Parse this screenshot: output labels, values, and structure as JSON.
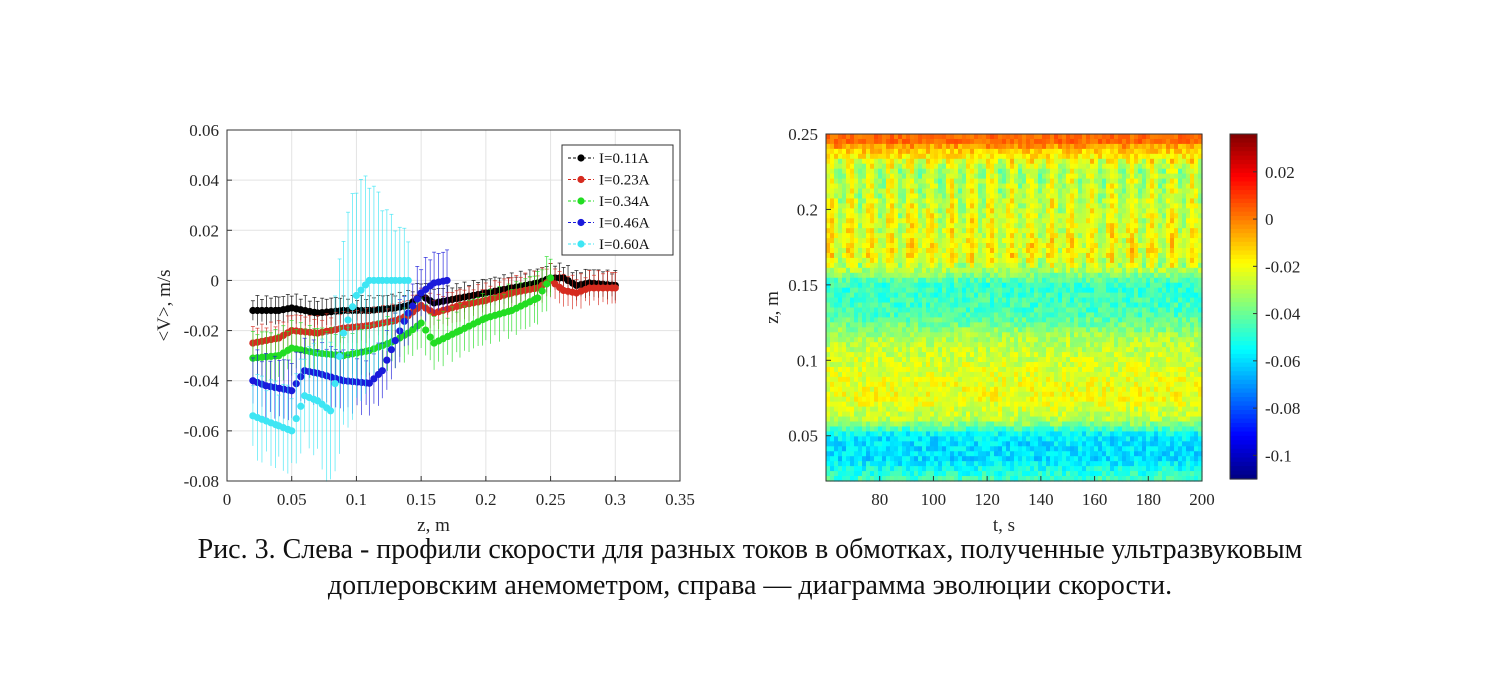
{
  "chart_data": [
    {
      "type": "scatter",
      "xlabel": "z, m",
      "ylabel": "<V>, m/s",
      "xlim": [
        0,
        0.35
      ],
      "ylim": [
        -0.08,
        0.06
      ],
      "xticks": [
        "0",
        "0.05",
        "0.1",
        "0.15",
        "0.2",
        "0.25",
        "0.3",
        "0.35"
      ],
      "yticks": [
        "0.06",
        "0.04",
        "0.02",
        "0",
        "-0.02",
        "-0.04",
        "-0.06",
        "-0.08"
      ],
      "grid": true,
      "legend_position": "top-right",
      "series": [
        {
          "name": "I=0.11A",
          "color": "#000000",
          "x": [
            0.02,
            0.04,
            0.05,
            0.07,
            0.09,
            0.11,
            0.13,
            0.14,
            0.15,
            0.16,
            0.18,
            0.2,
            0.22,
            0.24,
            0.25,
            0.26,
            0.27,
            0.28,
            0.3
          ],
          "y": [
            -0.012,
            -0.012,
            -0.011,
            -0.013,
            -0.012,
            -0.012,
            -0.011,
            -0.01,
            -0.006,
            -0.009,
            -0.007,
            -0.005,
            -0.003,
            -0.001,
            0.001,
            0.001,
            -0.002,
            -0.001,
            -0.002
          ],
          "err": 0.006
        },
        {
          "name": "I=0.23A",
          "color": "#d62b1f",
          "x": [
            0.02,
            0.04,
            0.05,
            0.07,
            0.09,
            0.11,
            0.13,
            0.14,
            0.15,
            0.16,
            0.18,
            0.2,
            0.22,
            0.24,
            0.25,
            0.26,
            0.27,
            0.28,
            0.3
          ],
          "y": [
            -0.025,
            -0.023,
            -0.02,
            -0.021,
            -0.019,
            -0.018,
            -0.016,
            -0.014,
            -0.01,
            -0.013,
            -0.01,
            -0.008,
            -0.005,
            -0.003,
            0.0,
            -0.004,
            -0.005,
            -0.003,
            -0.003
          ],
          "err": 0.007
        },
        {
          "name": "I=0.34A",
          "color": "#22dd22",
          "x": [
            0.02,
            0.04,
            0.05,
            0.07,
            0.09,
            0.11,
            0.13,
            0.14,
            0.15,
            0.16,
            0.18,
            0.2,
            0.22,
            0.24,
            0.25
          ],
          "y": [
            -0.031,
            -0.03,
            -0.027,
            -0.029,
            -0.03,
            -0.028,
            -0.024,
            -0.021,
            -0.017,
            -0.025,
            -0.02,
            -0.015,
            -0.012,
            -0.007,
            0.001
          ],
          "err": 0.011
        },
        {
          "name": "I=0.46A",
          "color": "#1a1adb",
          "x": [
            0.02,
            0.03,
            0.05,
            0.06,
            0.07,
            0.09,
            0.11,
            0.12,
            0.13,
            0.14,
            0.15,
            0.16,
            0.17
          ],
          "y": [
            -0.04,
            -0.042,
            -0.044,
            -0.036,
            -0.037,
            -0.04,
            -0.041,
            -0.036,
            -0.024,
            -0.013,
            -0.005,
            -0.001,
            0.0
          ],
          "err": 0.013
        },
        {
          "name": "I=0.60A",
          "color": "#3ee6f4",
          "x": [
            0.02,
            0.04,
            0.05,
            0.06,
            0.07,
            0.08,
            0.09,
            0.1,
            0.11,
            0.12,
            0.13,
            0.14
          ],
          "y": [
            -0.054,
            -0.058,
            -0.06,
            -0.046,
            -0.048,
            -0.052,
            -0.021,
            -0.006,
            0.0,
            0.0,
            0.0,
            0.0
          ],
          "err": 0.03
        }
      ]
    },
    {
      "type": "heatmap",
      "xlabel": "t, s",
      "ylabel": "z, m",
      "xlim": [
        60,
        200
      ],
      "ylim": [
        0.02,
        0.25
      ],
      "xticks": [
        "80",
        "100",
        "120",
        "140",
        "160",
        "180",
        "200"
      ],
      "yticks": [
        "0.25",
        "0.2",
        "0.15",
        "0.1",
        "0.05"
      ],
      "colorbar_range": [
        -0.11,
        0.036
      ],
      "colorbar_ticks": [
        "0.02",
        "0",
        "-0.02",
        "-0.04",
        "-0.06",
        "-0.08",
        "-0.1"
      ],
      "colormap": "jet",
      "z_profile": [
        {
          "z": 0.02,
          "v": -0.045
        },
        {
          "z": 0.035,
          "v": -0.06
        },
        {
          "z": 0.05,
          "v": -0.058
        },
        {
          "z": 0.06,
          "v": -0.03
        },
        {
          "z": 0.075,
          "v": -0.02
        },
        {
          "z": 0.1,
          "v": -0.025
        },
        {
          "z": 0.115,
          "v": -0.03
        },
        {
          "z": 0.13,
          "v": -0.045
        },
        {
          "z": 0.15,
          "v": -0.048
        },
        {
          "z": 0.16,
          "v": -0.03
        },
        {
          "z": 0.17,
          "v": -0.02
        },
        {
          "z": 0.2,
          "v": -0.025
        },
        {
          "z": 0.225,
          "v": -0.03
        },
        {
          "z": 0.24,
          "v": -0.01
        },
        {
          "z": 0.245,
          "v": 0.005
        },
        {
          "z": 0.25,
          "v": 0.005
        }
      ]
    }
  ],
  "caption": {
    "line1": "Рис. 3. Слева - профили скорости для разных токов в обмотках, полученные ультразвуковым",
    "line2": "доплеровским анемометром, справа — диаграмма эволюции скорости."
  }
}
